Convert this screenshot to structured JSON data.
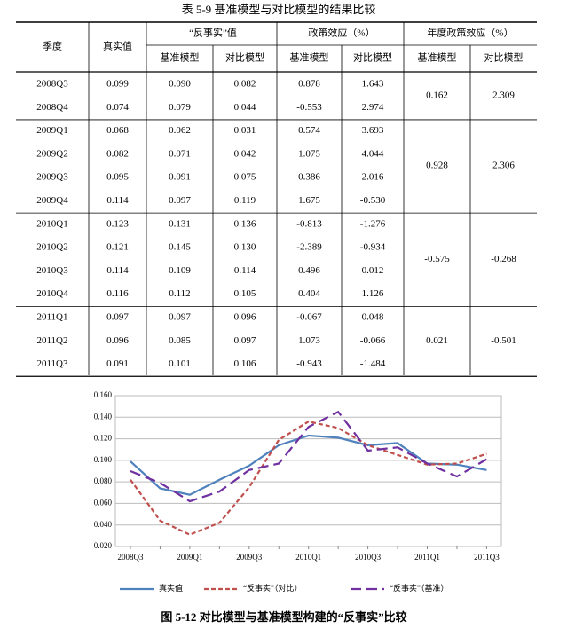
{
  "table": {
    "title": "表 5-9  基准模型与对比模型的结果比较",
    "header": {
      "top": [
        "季度",
        "真实值",
        "“反事实”值",
        "政策效应（%）",
        "年度政策效应（%）"
      ],
      "sub": [
        "基准模型",
        "对比模型",
        "基准模型",
        "对比模型",
        "基准模型",
        "对比模型"
      ]
    },
    "groups": [
      {
        "rows": [
          [
            "2008Q3",
            "0.099",
            "0.090",
            "0.082",
            "0.878",
            "1.643"
          ],
          [
            "2008Q4",
            "0.074",
            "0.079",
            "0.044",
            "-0.553",
            "2.974"
          ]
        ],
        "annual": [
          "0.162",
          "2.309"
        ]
      },
      {
        "rows": [
          [
            "2009Q1",
            "0.068",
            "0.062",
            "0.031",
            "0.574",
            "3.693"
          ],
          [
            "2009Q2",
            "0.082",
            "0.071",
            "0.042",
            "1.075",
            "4.044"
          ],
          [
            "2009Q3",
            "0.095",
            "0.091",
            "0.075",
            "0.386",
            "2.016"
          ],
          [
            "2009Q4",
            "0.114",
            "0.097",
            "0.119",
            "1.675",
            "-0.530"
          ]
        ],
        "annual": [
          "0.928",
          "2.306"
        ]
      },
      {
        "rows": [
          [
            "2010Q1",
            "0.123",
            "0.131",
            "0.136",
            "-0.813",
            "-1.276"
          ],
          [
            "2010Q2",
            "0.121",
            "0.145",
            "0.130",
            "-2.389",
            "-0.934"
          ],
          [
            "2010Q3",
            "0.114",
            "0.109",
            "0.114",
            "0.496",
            "0.012"
          ],
          [
            "2010Q4",
            "0.116",
            "0.112",
            "0.105",
            "0.404",
            "1.126"
          ]
        ],
        "annual": [
          "-0.575",
          "-0.268"
        ]
      },
      {
        "rows": [
          [
            "2011Q1",
            "0.097",
            "0.097",
            "0.096",
            "-0.067",
            "0.048"
          ],
          [
            "2011Q2",
            "0.096",
            "0.085",
            "0.097",
            "1.073",
            "-0.066"
          ],
          [
            "2011Q3",
            "0.091",
            "0.101",
            "0.106",
            "-0.943",
            "-1.484"
          ]
        ],
        "annual": [
          "0.021",
          "-0.501"
        ]
      }
    ]
  },
  "chart_data": {
    "type": "line",
    "caption": "图 5-12  对比模型与基准模型构建的“反事实”比较",
    "categories": [
      "2008Q3",
      null,
      "2009Q1",
      null,
      "2009Q3",
      null,
      "2010Q1",
      null,
      "2010Q3",
      null,
      "2011Q1",
      null,
      "2011Q3"
    ],
    "series": [
      {
        "name": "真实值",
        "color": "#4f81bd",
        "dash": "solid",
        "values": [
          0.099,
          0.074,
          0.068,
          0.082,
          0.095,
          0.114,
          0.123,
          0.121,
          0.114,
          0.116,
          0.097,
          0.096,
          0.091
        ]
      },
      {
        "name": "“反事实”（对比）",
        "color": "#c0504d",
        "dash": "short",
        "values": [
          0.082,
          0.044,
          0.031,
          0.042,
          0.075,
          0.119,
          0.136,
          0.13,
          0.114,
          0.105,
          0.096,
          0.097,
          0.106
        ]
      },
      {
        "name": "“反事实”（基准）",
        "color": "#7030a0",
        "dash": "long",
        "values": [
          0.09,
          0.079,
          0.062,
          0.071,
          0.091,
          0.097,
          0.131,
          0.145,
          0.109,
          0.112,
          0.097,
          0.085,
          0.101
        ]
      }
    ],
    "ylim": [
      0.02,
      0.16
    ],
    "yticks": [
      {
        "value": 0.02,
        "label": "0.020"
      },
      {
        "value": 0.04,
        "label": "0.040"
      },
      {
        "value": 0.06,
        "label": "0.060"
      },
      {
        "value": 0.08,
        "label": "0.080"
      },
      {
        "value": 0.1,
        "label": "0.100"
      },
      {
        "value": 0.12,
        "label": "0.120"
      },
      {
        "value": 0.14,
        "label": "0.140"
      },
      {
        "value": 0.16,
        "label": "0.160"
      }
    ],
    "grid": true,
    "legend": "bottom"
  }
}
